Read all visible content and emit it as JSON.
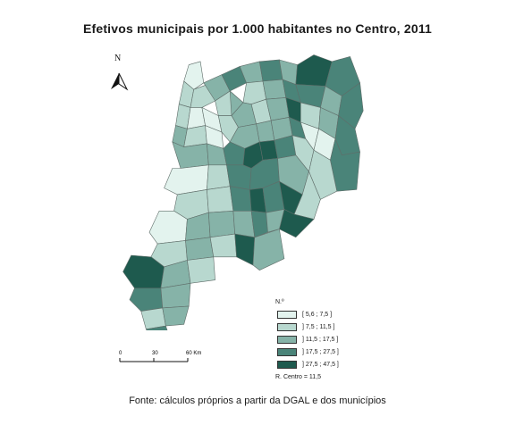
{
  "title": "Efetivos municipais por 1.000 habitantes no Centro, 2011",
  "north_label": "N",
  "legend": {
    "title": "N.º",
    "items": [
      {
        "label": "[ 5,6 ; 7,5 ]",
        "color": "#e3f3ee"
      },
      {
        "label": "] 7,5 ; 11,5 ]",
        "color": "#b8d8cf"
      },
      {
        "label": "] 11,5 ; 17,5 ]",
        "color": "#86b3a8"
      },
      {
        "label": "] 17,5 ; 27,5 ]",
        "color": "#4a8479"
      },
      {
        "label": "] 27,5 ; 47,5 ]",
        "color": "#1e5a4e"
      }
    ],
    "reference": "R. Centro = 11,5"
  },
  "scale": {
    "ticks": [
      "0",
      "30",
      "60 Km"
    ]
  },
  "source": "Fonte: cálculos próprios a partir da DGAL e dos municípios",
  "colors": {
    "border": "#5f6d69",
    "outline": "#555555"
  }
}
